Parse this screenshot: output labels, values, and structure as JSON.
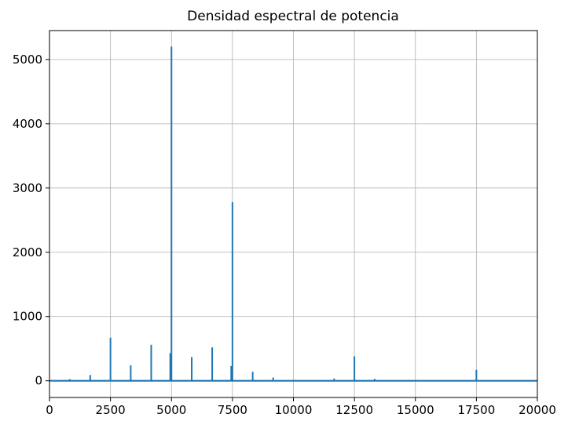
{
  "chart_data": {
    "type": "line",
    "title": "Densidad espectral de potencia",
    "xlabel": "",
    "ylabel": "",
    "xlim": [
      0,
      20000
    ],
    "ylim": [
      -260,
      5450
    ],
    "grid": true,
    "legend": "none",
    "color": "#1f77b4",
    "x_ticks": [
      {
        "value": 0,
        "label": "0"
      },
      {
        "value": 2500,
        "label": "2500"
      },
      {
        "value": 5000,
        "label": "5000"
      },
      {
        "value": 7500,
        "label": "7500"
      },
      {
        "value": 10000,
        "label": "10000"
      },
      {
        "value": 12500,
        "label": "12500"
      },
      {
        "value": 15000,
        "label": "15000"
      },
      {
        "value": 17500,
        "label": "17500"
      },
      {
        "value": 20000,
        "label": "20000"
      }
    ],
    "y_ticks": [
      {
        "value": 0,
        "label": "0"
      },
      {
        "value": 1000,
        "label": "1000"
      },
      {
        "value": 2000,
        "label": "2000"
      },
      {
        "value": 3000,
        "label": "3000"
      },
      {
        "value": 4000,
        "label": "4000"
      },
      {
        "value": 5000,
        "label": "5000"
      }
    ],
    "series": [
      {
        "peaks": [
          {
            "x": 830,
            "y": 25
          },
          {
            "x": 1670,
            "y": 90
          },
          {
            "x": 2500,
            "y": 670
          },
          {
            "x": 3330,
            "y": 240
          },
          {
            "x": 4170,
            "y": 560
          },
          {
            "x": 4950,
            "y": 430
          },
          {
            "x": 5000,
            "y": 5200
          },
          {
            "x": 5830,
            "y": 370
          },
          {
            "x": 6670,
            "y": 520
          },
          {
            "x": 7450,
            "y": 230
          },
          {
            "x": 7500,
            "y": 2780
          },
          {
            "x": 8330,
            "y": 140
          },
          {
            "x": 9170,
            "y": 50
          },
          {
            "x": 11670,
            "y": 35
          },
          {
            "x": 12500,
            "y": 380
          },
          {
            "x": 13330,
            "y": 30
          },
          {
            "x": 17500,
            "y": 170
          }
        ]
      }
    ]
  }
}
